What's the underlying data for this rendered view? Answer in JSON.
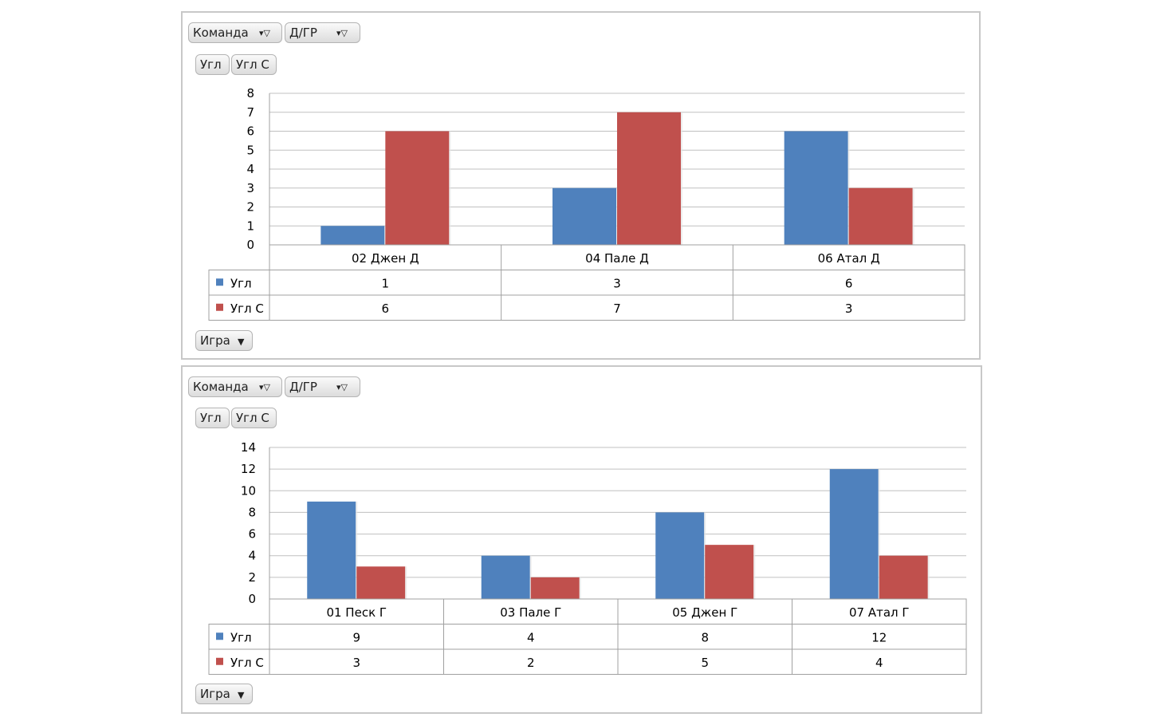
{
  "colors": {
    "series1": "#4f81bd",
    "series2": "#c0504d",
    "grid": "#c0c0c0",
    "table_border": "#a0a0a0"
  },
  "icons": {
    "filter": "filter-icon",
    "dropdown": "chevron-down-icon",
    "legend_marker": "square-icon"
  },
  "panels": [
    {
      "filters": {
        "team": "Команда",
        "dgr": "Д/ГР"
      },
      "value_buttons": {
        "ugl": "Угл",
        "ugl_s": "Угл С"
      },
      "game_button": "Игра"
    },
    {
      "filters": {
        "team": "Команда",
        "dgr": "Д/ГР"
      },
      "value_buttons": {
        "ugl": "Угл",
        "ugl_s": "Угл С"
      },
      "game_button": "Игра"
    }
  ],
  "chart_data": [
    {
      "type": "bar",
      "title": "",
      "xlabel": "",
      "ylabel": "",
      "categories": [
        "02 Джен Д",
        "04 Пале Д",
        "06 Атал Д"
      ],
      "series": [
        {
          "name": "Угл",
          "values": [
            1,
            3,
            6
          ]
        },
        {
          "name": "Угл С",
          "values": [
            6,
            7,
            3
          ]
        }
      ],
      "ylim": [
        0,
        8
      ],
      "yticks": [
        "0",
        "1",
        "2",
        "3",
        "4",
        "5",
        "6",
        "7",
        "8"
      ],
      "grid": true,
      "data_table": true
    },
    {
      "type": "bar",
      "title": "",
      "xlabel": "",
      "ylabel": "",
      "categories": [
        "01 Песк Г",
        "03 Пале Г",
        "05 Джен Г",
        "07 Атал Г"
      ],
      "series": [
        {
          "name": "Угл",
          "values": [
            9,
            4,
            8,
            12
          ]
        },
        {
          "name": "Угл С",
          "values": [
            3,
            2,
            5,
            4
          ]
        }
      ],
      "ylim": [
        0,
        14
      ],
      "yticks": [
        "0",
        "2",
        "4",
        "6",
        "8",
        "10",
        "12",
        "14"
      ],
      "grid": true,
      "data_table": true
    }
  ]
}
